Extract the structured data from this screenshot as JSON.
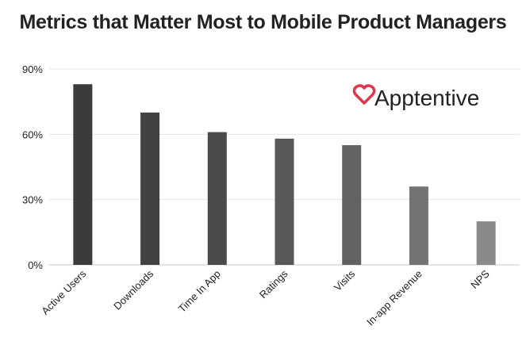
{
  "chart_data": {
    "type": "bar",
    "title": "Metrics that Matter Most to Mobile Product Managers",
    "categories": [
      "Active Users",
      "Downloads",
      "Time In App",
      "Ratings",
      "Visits",
      "In-app Revenue",
      "NPS"
    ],
    "values": [
      83,
      70,
      61,
      58,
      55,
      36,
      20
    ],
    "ylim": [
      0,
      90
    ],
    "yticks": [
      0,
      30,
      60,
      90
    ],
    "ytick_labels": [
      "0%",
      "30%",
      "60%",
      "90%"
    ],
    "xlabel": "",
    "ylabel": "",
    "grid": true,
    "bar_colors": [
      "#3b3b3b",
      "#424242",
      "#4b4b4b",
      "#585858",
      "#626262",
      "#737373",
      "#8a8a8a"
    ]
  },
  "logo": {
    "text": "Apptentive",
    "icon": "heart-icon",
    "color": "#e0364b"
  }
}
